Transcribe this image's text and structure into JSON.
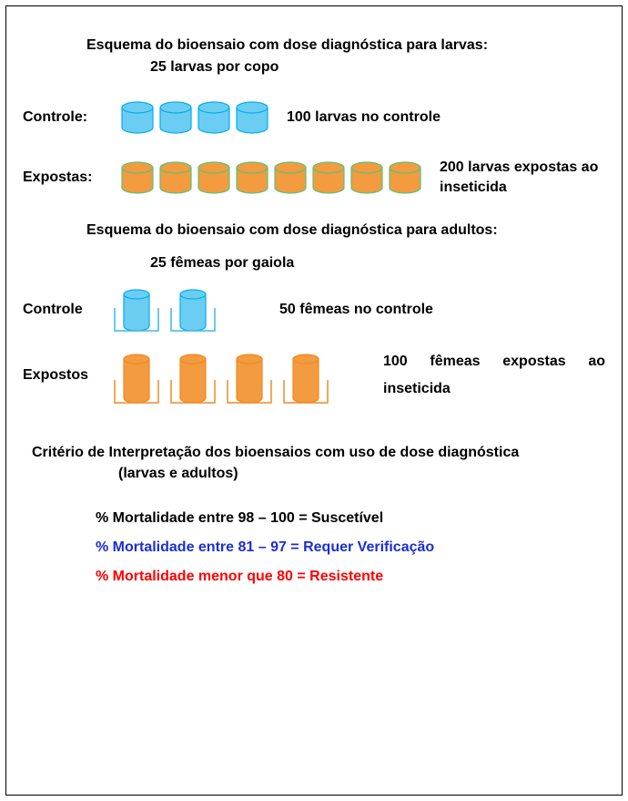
{
  "colors": {
    "blue_fill": "#6ccdf2",
    "blue_stroke": "#00aeef",
    "orange_fill": "#f29b3f",
    "orange_stroke": "#56c47a",
    "cage_orange_stroke": "#f08a27",
    "cage_blue_stroke": "#3cb9e2",
    "text_blue": "#1a2ed6",
    "text_red": "#ff0000",
    "text_black": "#000000"
  },
  "fonts": {
    "base_size": 16,
    "weight": "bold",
    "family": "Arial"
  },
  "larvae": {
    "title": "Esquema do bioensaio com dose diagnóstica para larvas:",
    "subtitle": "25 larvas por copo",
    "control_label": "Controle:",
    "control_count": 4,
    "control_desc": "100 larvas no controle",
    "exposed_label": "Expostas:",
    "exposed_count": 8,
    "exposed_desc": "200 larvas expostas ao inseticida",
    "cup": {
      "width": 36,
      "height": 36,
      "ellipse_ry": 6
    }
  },
  "adults": {
    "title": "Esquema do bioensaio com dose diagnóstica para adultos:",
    "subtitle": "25 fêmeas por gaiola",
    "control_label": "Controle",
    "control_count": 2,
    "control_desc": "50 fêmeas no controle",
    "exposed_label": "Expostos",
    "exposed_count": 4,
    "exposed_desc": "100 fêmeas expostas ao inseticida",
    "cage": {
      "base_w": 50,
      "base_h": 26,
      "cyl_w": 28,
      "cyl_h": 40
    }
  },
  "criteria": {
    "title": "Critério de Interpretação dos bioensaios com uso de dose diagnóstica",
    "subtitle": "(larvas e adultos)",
    "lines": [
      {
        "text": "% Mortalidade entre 98 – 100 = Suscetível",
        "colorKey": "text_black"
      },
      {
        "text": "% Mortalidade entre 81 – 97 = Requer Verificação",
        "colorKey": "text_blue"
      },
      {
        "text": "% Mortalidade menor que 80 = Resistente",
        "colorKey": "text_red"
      }
    ]
  }
}
